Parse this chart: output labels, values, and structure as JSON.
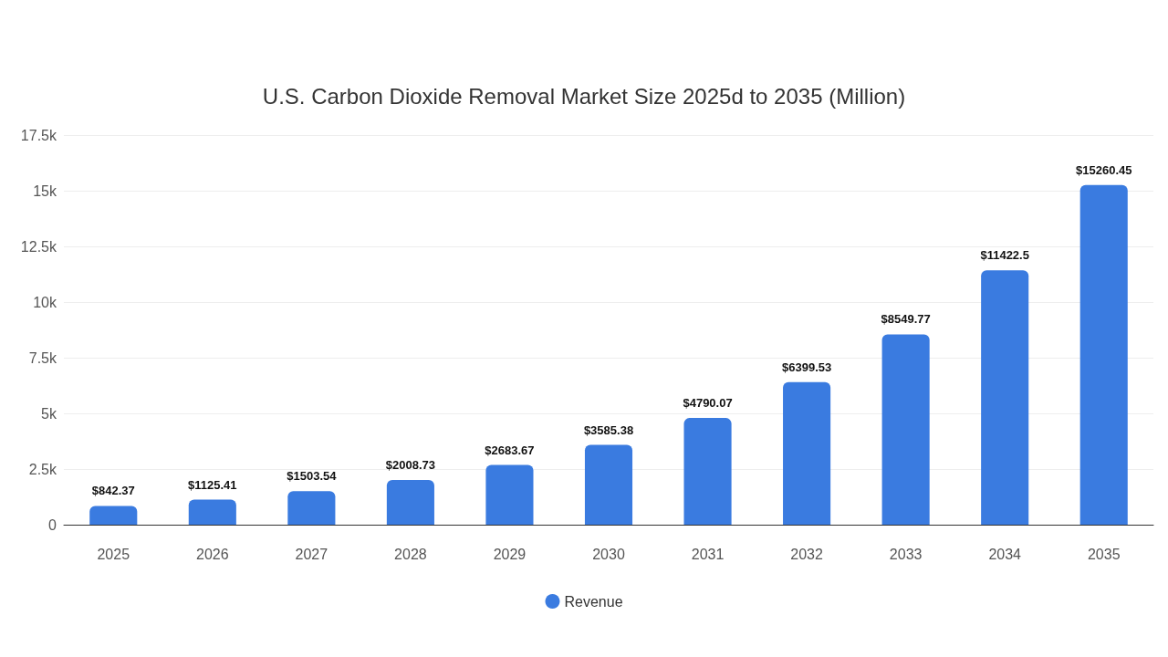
{
  "chart_data": {
    "type": "bar",
    "title": "U.S. Carbon Dioxide Removal Market Size 2025d to 2035 (Million)",
    "categories": [
      "2025",
      "2026",
      "2027",
      "2028",
      "2029",
      "2030",
      "2031",
      "2032",
      "2033",
      "2034",
      "2035"
    ],
    "series": [
      {
        "name": "Revenue",
        "color": "#3a7be0",
        "values": [
          842.37,
          1125.41,
          1503.54,
          2008.73,
          2683.67,
          3585.38,
          4790.07,
          6399.53,
          8549.77,
          11422.5,
          15260.45
        ],
        "value_labels": [
          "$842.37",
          "$1125.41",
          "$1503.54",
          "$2008.73",
          "$2683.67",
          "$3585.38",
          "$4790.07",
          "$6399.53",
          "$8549.77",
          "$11422.5",
          "$15260.45"
        ]
      }
    ],
    "ylim": [
      0,
      17500
    ],
    "yticks": [
      0,
      {
        "value": 2500,
        "label": "2.5k"
      },
      {
        "value": 5000,
        "label": "5k"
      },
      {
        "value": 7500,
        "label": "7.5k"
      },
      {
        "value": 10000,
        "label": "10k"
      },
      {
        "value": 12500,
        "label": "12.5k"
      },
      {
        "value": 15000,
        "label": "15k"
      },
      {
        "value": 17500,
        "label": "17.5k"
      }
    ],
    "grid": "y",
    "legend": "bottom"
  }
}
